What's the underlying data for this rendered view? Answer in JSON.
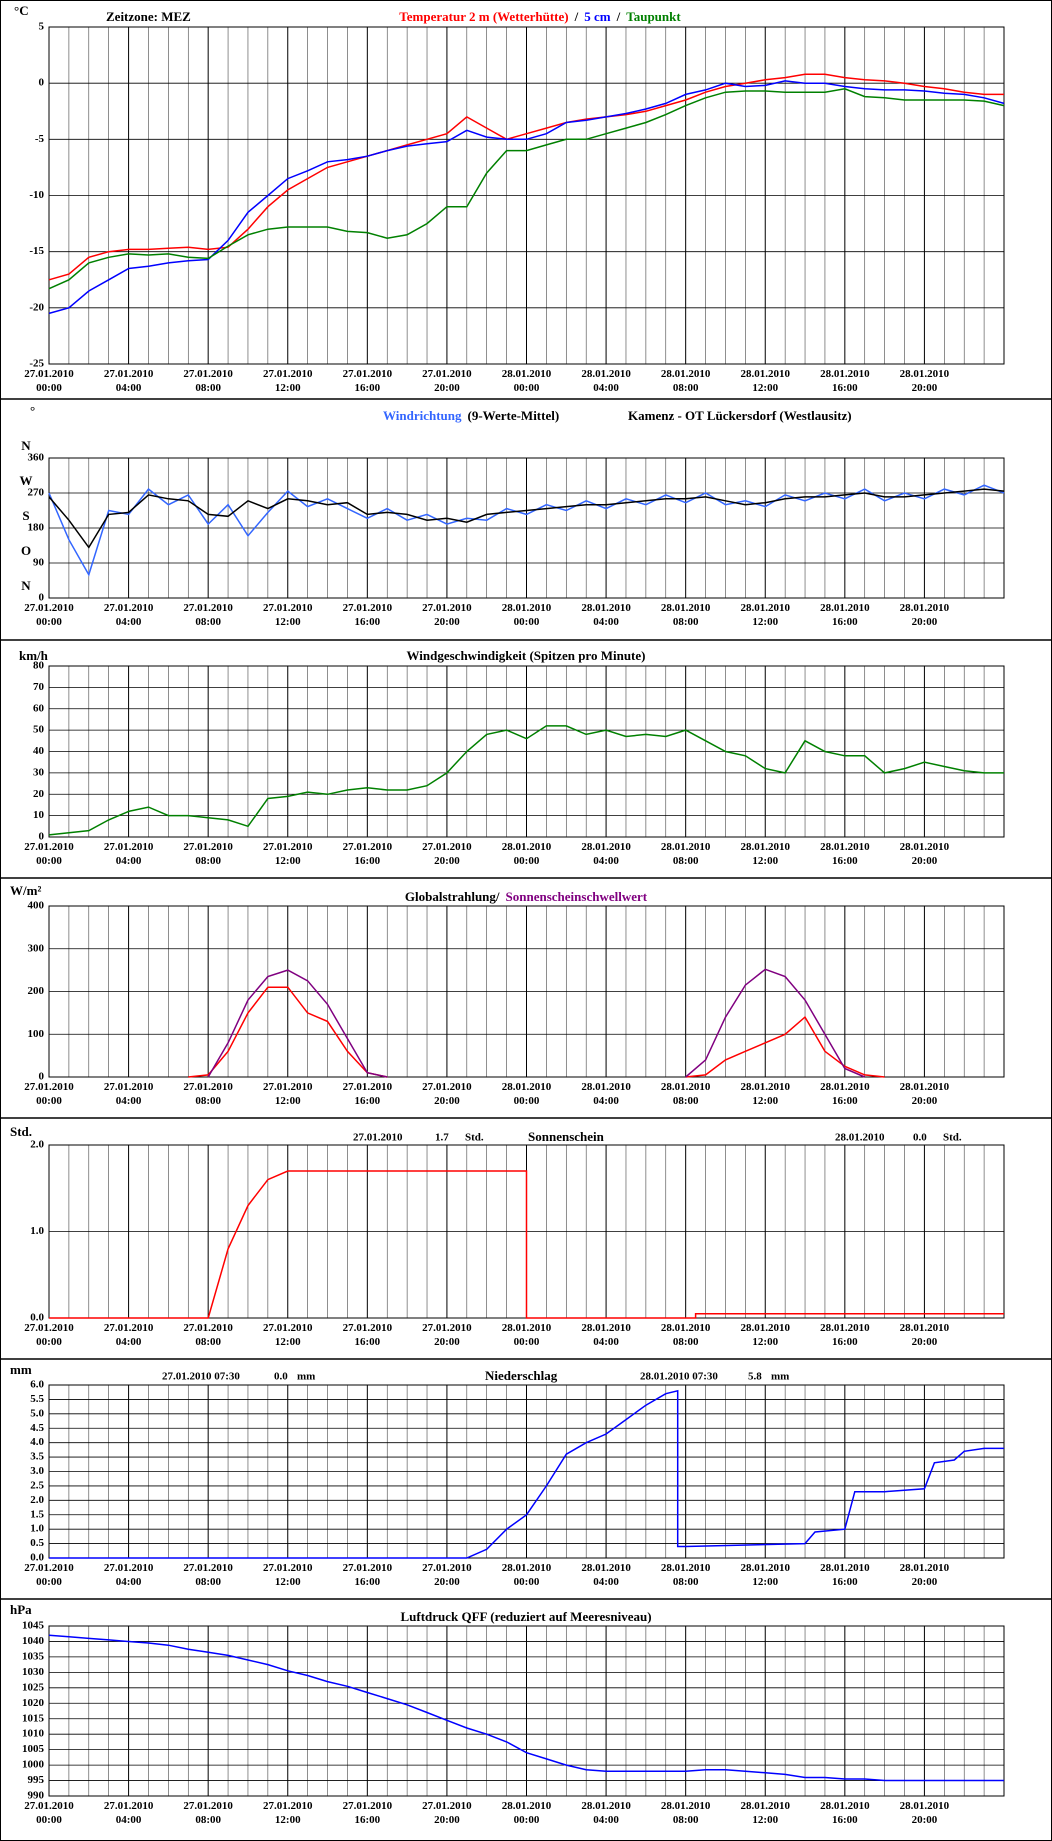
{
  "x_axis": {
    "xlim": [
      0,
      48
    ],
    "xticks": [
      {
        "value": 0,
        "label": "27.01.2010\n00:00"
      },
      {
        "value": 4,
        "label": "27.01.2010\n04:00"
      },
      {
        "value": 8,
        "label": "27.01.2010\n08:00"
      },
      {
        "value": 12,
        "label": "27.01.2010\n12:00"
      },
      {
        "value": 16,
        "label": "27.01.2010\n16:00"
      },
      {
        "value": 20,
        "label": "27.01.2010\n20:00"
      },
      {
        "value": 24,
        "label": "28.01.2010\n00:00"
      },
      {
        "value": 28,
        "label": "28.01.2010\n04:00"
      },
      {
        "value": 32,
        "label": "28.01.2010\n08:00"
      },
      {
        "value": 36,
        "label": "28.01.2010\n12:00"
      },
      {
        "value": 40,
        "label": "28.01.2010\n16:00"
      },
      {
        "value": 44,
        "label": "28.01.2010\n20:00"
      }
    ],
    "minor_xticks": [
      1,
      2,
      3,
      5,
      6,
      7,
      9,
      10,
      11,
      13,
      14,
      15,
      17,
      18,
      19,
      21,
      22,
      23,
      25,
      26,
      27,
      29,
      30,
      31,
      33,
      34,
      35,
      37,
      38,
      39,
      41,
      42,
      43,
      45,
      46,
      47
    ]
  },
  "chart_data": [
    {
      "type": "line",
      "unit": "°C",
      "note": "Zeitzone: MEZ",
      "separator": "/",
      "ylim": [
        -25,
        5
      ],
      "yticks": [
        -25,
        -20,
        -15,
        -10,
        -5,
        0,
        5
      ],
      "x": [
        0,
        1,
        2,
        3,
        4,
        5,
        6,
        7,
        8,
        9,
        10,
        11,
        12,
        13,
        14,
        15,
        16,
        17,
        18,
        19,
        20,
        21,
        22,
        23,
        24,
        25,
        26,
        27,
        28,
        29,
        30,
        31,
        32,
        33,
        34,
        35,
        36,
        37,
        38,
        39,
        40,
        41,
        42,
        43,
        44,
        45,
        46,
        47,
        48
      ],
      "series": [
        {
          "name": "Temperatur 2 m (Wetterhütte)",
          "color": "#ff0000",
          "values": [
            -17.5,
            -17,
            -15.5,
            -15,
            -14.8,
            -14.8,
            -14.7,
            -14.6,
            -14.8,
            -14.6,
            -13,
            -11,
            -9.5,
            -8.5,
            -7.5,
            -7,
            -6.5,
            -6,
            -5.5,
            -5,
            -4.5,
            -3,
            -4,
            -5,
            -4.5,
            -4,
            -3.5,
            -3.2,
            -3,
            -2.8,
            -2.5,
            -2,
            -1.5,
            -0.8,
            -0.3,
            0,
            0.3,
            0.5,
            0.8,
            0.8,
            0.5,
            0.3,
            0.2,
            0,
            -0.3,
            -0.5,
            -0.8,
            -1,
            -1
          ]
        },
        {
          "name": "5 cm",
          "color": "#0000ff",
          "values": [
            -20.5,
            -20,
            -18.5,
            -17.5,
            -16.5,
            -16.3,
            -16,
            -15.8,
            -15.7,
            -14,
            -11.5,
            -10,
            -8.5,
            -7.8,
            -7,
            -6.8,
            -6.5,
            -6,
            -5.6,
            -5.4,
            -5.2,
            -4.2,
            -4.8,
            -5,
            -5,
            -4.5,
            -3.5,
            -3.3,
            -3,
            -2.7,
            -2.3,
            -1.8,
            -1,
            -0.6,
            0,
            -0.3,
            -0.2,
            0.2,
            0,
            0,
            -0.3,
            -0.5,
            -0.6,
            -0.6,
            -0.7,
            -0.9,
            -1,
            -1.3,
            -1.8
          ]
        },
        {
          "name": "Taupunkt",
          "color": "#008000",
          "values": [
            -18.3,
            -17.5,
            -16,
            -15.5,
            -15.2,
            -15.3,
            -15.2,
            -15.5,
            -15.6,
            -14.5,
            -13.5,
            -13,
            -12.8,
            -12.8,
            -12.8,
            -13.2,
            -13.3,
            -13.8,
            -13.5,
            -12.5,
            -11,
            -11,
            -8,
            -6,
            -6,
            -5.5,
            -5,
            -5,
            -4.5,
            -4,
            -3.5,
            -2.8,
            -2,
            -1.3,
            -0.8,
            -0.7,
            -0.7,
            -0.8,
            -0.8,
            -0.8,
            -0.5,
            -1.2,
            -1.3,
            -1.5,
            -1.5,
            -1.5,
            -1.5,
            -1.6,
            -2
          ]
        }
      ]
    },
    {
      "type": "line",
      "unit": "°",
      "title": "Kamenz - OT Lückersdorf (Westlausitz)",
      "ylim": [
        0,
        360
      ],
      "yticks": [
        0,
        90,
        180,
        270,
        360
      ],
      "compass": [
        {
          "value": 360,
          "label": "N"
        },
        {
          "value": 270,
          "label": "W"
        },
        {
          "value": 180,
          "label": "S"
        },
        {
          "value": 90,
          "label": "O"
        },
        {
          "value": 0,
          "label": "N"
        }
      ],
      "x": [
        0,
        1,
        2,
        3,
        4,
        5,
        6,
        7,
        8,
        9,
        10,
        11,
        12,
        13,
        14,
        15,
        16,
        17,
        18,
        19,
        20,
        21,
        22,
        23,
        24,
        25,
        26,
        27,
        28,
        29,
        30,
        31,
        32,
        33,
        34,
        35,
        36,
        37,
        38,
        39,
        40,
        41,
        42,
        43,
        44,
        45,
        46,
        47,
        48
      ],
      "series": [
        {
          "name": "Windrichtung",
          "color": "#3366ff",
          "values": [
            270,
            150,
            60,
            225,
            215,
            280,
            240,
            265,
            190,
            240,
            160,
            220,
            275,
            235,
            255,
            230,
            205,
            230,
            200,
            215,
            190,
            205,
            200,
            230,
            215,
            240,
            225,
            250,
            230,
            255,
            240,
            265,
            245,
            270,
            240,
            250,
            235,
            265,
            250,
            270,
            255,
            280,
            250,
            270,
            255,
            280,
            265,
            290,
            270
          ]
        },
        {
          "name": "(9-Werte-Mittel)",
          "color": "#000000",
          "values": [
            260,
            200,
            130,
            215,
            220,
            265,
            255,
            250,
            215,
            210,
            250,
            230,
            255,
            250,
            240,
            245,
            215,
            220,
            215,
            200,
            205,
            195,
            215,
            220,
            225,
            230,
            235,
            240,
            240,
            245,
            250,
            255,
            255,
            260,
            250,
            240,
            245,
            255,
            260,
            260,
            265,
            270,
            260,
            260,
            265,
            270,
            275,
            280,
            275
          ]
        }
      ]
    },
    {
      "type": "line",
      "unit": "km/h",
      "title": "Windgeschwindigkeit (Spitzen pro Minute)",
      "ylim": [
        0,
        80
      ],
      "yticks": [
        0,
        10,
        20,
        30,
        40,
        50,
        60,
        70,
        80
      ],
      "x": [
        0,
        1,
        2,
        3,
        4,
        5,
        6,
        7,
        8,
        9,
        10,
        11,
        12,
        13,
        14,
        15,
        16,
        17,
        18,
        19,
        20,
        21,
        22,
        23,
        24,
        25,
        26,
        27,
        28,
        29,
        30,
        31,
        32,
        33,
        34,
        35,
        36,
        37,
        38,
        39,
        40,
        41,
        42,
        43,
        44,
        45,
        46,
        47,
        48
      ],
      "series": [
        {
          "color": "#008000",
          "values": [
            1,
            2,
            3,
            8,
            12,
            14,
            10,
            10,
            9,
            8,
            5,
            18,
            19,
            21,
            20,
            22,
            23,
            22,
            22,
            24,
            30,
            40,
            48,
            50,
            46,
            52,
            52,
            48,
            50,
            47,
            48,
            47,
            50,
            45,
            40,
            38,
            32,
            30,
            45,
            40,
            38,
            38,
            30,
            32,
            35,
            33,
            31,
            30,
            30
          ]
        }
      ]
    },
    {
      "type": "line",
      "unit": "W/m²",
      "ylim": [
        0,
        400
      ],
      "yticks": [
        0,
        100,
        200,
        300,
        400
      ],
      "x": [
        0,
        1,
        2,
        3,
        4,
        5,
        6,
        7,
        8,
        9,
        10,
        11,
        12,
        13,
        14,
        15,
        16,
        17,
        18,
        19,
        20,
        21,
        22,
        23,
        24,
        25,
        26,
        27,
        28,
        29,
        30,
        31,
        32,
        33,
        34,
        35,
        36,
        37,
        38,
        39,
        40,
        41,
        42,
        43,
        44,
        45,
        46,
        47,
        48
      ],
      "series": [
        {
          "name": "Globalstrahlung/",
          "color": "#ff0000",
          "label_color": "#000000",
          "values": [
            null,
            null,
            null,
            null,
            null,
            null,
            null,
            0,
            5,
            60,
            150,
            210,
            210,
            150,
            130,
            60,
            10,
            0,
            null,
            null,
            null,
            null,
            null,
            null,
            null,
            null,
            null,
            null,
            null,
            null,
            null,
            null,
            0,
            5,
            40,
            60,
            80,
            100,
            140,
            60,
            25,
            5,
            0,
            null,
            null,
            null,
            null,
            null,
            null
          ]
        },
        {
          "name": "Sonnenscheinschwellwert",
          "color": "#800080",
          "values": [
            null,
            null,
            null,
            null,
            null,
            null,
            null,
            null,
            0,
            80,
            180,
            235,
            250,
            225,
            170,
            90,
            10,
            0,
            null,
            null,
            null,
            null,
            null,
            null,
            null,
            null,
            null,
            null,
            null,
            null,
            null,
            null,
            0,
            40,
            140,
            215,
            252,
            235,
            180,
            100,
            20,
            0,
            null,
            null,
            null,
            null,
            null,
            null,
            null
          ]
        }
      ]
    },
    {
      "type": "line",
      "unit": "Std.",
      "title": "Sonnenschein",
      "ylim": [
        0,
        2
      ],
      "yticks": [
        {
          "value": 0,
          "label": "0.0"
        },
        {
          "value": 1,
          "label": "1.0"
        },
        {
          "value": 2,
          "label": "2.0"
        }
      ],
      "summary": [
        {
          "date": "27.01.2010",
          "total": 1.7,
          "unit": "Std."
        },
        {
          "date": "28.01.2010",
          "total": {
            "value": 0,
            "label": "0.0"
          },
          "unit": "Std."
        }
      ],
      "series": [
        {
          "color": "#ff0000",
          "x": [
            0,
            8,
            9,
            10,
            11,
            12,
            24,
            24,
            32.5,
            32.5,
            48
          ],
          "values": [
            0,
            0,
            0.8,
            1.3,
            1.6,
            1.7,
            1.7,
            0,
            0,
            0.05,
            0.05
          ]
        }
      ]
    },
    {
      "type": "line",
      "unit": "mm",
      "title": "Niederschlag",
      "ylim": [
        0,
        6
      ],
      "yticks": [
        {
          "value": 0,
          "label": "0.0"
        },
        0.5,
        {
          "value": 1,
          "label": "1.0"
        },
        1.5,
        {
          "value": 2,
          "label": "2.0"
        },
        2.5,
        {
          "value": 3,
          "label": "3.0"
        },
        3.5,
        {
          "value": 4,
          "label": "4.0"
        },
        4.5,
        {
          "value": 5,
          "label": "5.0"
        },
        5.5,
        {
          "value": 6,
          "label": "6.0"
        }
      ],
      "summary": [
        {
          "date": "27.01.2010 07:30",
          "total": {
            "value": 0,
            "label": "0.0"
          },
          "unit": "mm"
        },
        {
          "date": "28.01.2010 07:30",
          "total": 5.8,
          "unit": "mm"
        }
      ],
      "series": [
        {
          "color": "#0000ff",
          "x": [
            0,
            21,
            22,
            23,
            24,
            25,
            26,
            27,
            28,
            29,
            30,
            31,
            31.6,
            31.6,
            32,
            38,
            38.5,
            40,
            40.5,
            42,
            44,
            44.5,
            45.5,
            46,
            47,
            48
          ],
          "values": [
            0,
            0,
            0.3,
            1,
            1.5,
            2.5,
            3.6,
            4,
            4.3,
            4.8,
            5.3,
            5.7,
            5.8,
            0.4,
            0.4,
            0.5,
            0.9,
            1,
            2.3,
            2.3,
            2.4,
            3.3,
            3.4,
            3.7,
            3.8,
            3.8
          ]
        }
      ]
    },
    {
      "type": "line",
      "unit": "hPa",
      "title": "Luftdruck QFF (reduziert auf Meeresniveau)",
      "ylim": [
        990,
        1045
      ],
      "yticks": [
        990,
        995,
        1000,
        1005,
        1010,
        1015,
        1020,
        1025,
        1030,
        1035,
        1040,
        1045
      ],
      "x": [
        0,
        1,
        2,
        3,
        4,
        5,
        6,
        7,
        8,
        9,
        10,
        11,
        12,
        13,
        14,
        15,
        16,
        17,
        18,
        19,
        20,
        21,
        22,
        23,
        24,
        25,
        26,
        27,
        28,
        29,
        30,
        31,
        32,
        33,
        34,
        35,
        36,
        37,
        38,
        39,
        40,
        41,
        42,
        43,
        44,
        45,
        46,
        47,
        48
      ],
      "series": [
        {
          "color": "#0000ff",
          "values": [
            1042,
            1041.5,
            1041,
            1040.5,
            1040,
            1039.5,
            1038.8,
            1037.5,
            1036.5,
            1035.5,
            1034,
            1032.5,
            1030.5,
            1029,
            1027,
            1025.5,
            1023.5,
            1021.5,
            1019.5,
            1017,
            1014.5,
            1012,
            1010,
            1007.5,
            1004,
            1002,
            1000,
            998.5,
            998,
            998,
            998,
            998,
            998,
            998.5,
            998.5,
            998,
            997.5,
            997,
            996,
            996,
            995.5,
            995.5,
            995,
            995,
            995,
            995,
            995,
            995,
            995
          ]
        }
      ]
    }
  ]
}
